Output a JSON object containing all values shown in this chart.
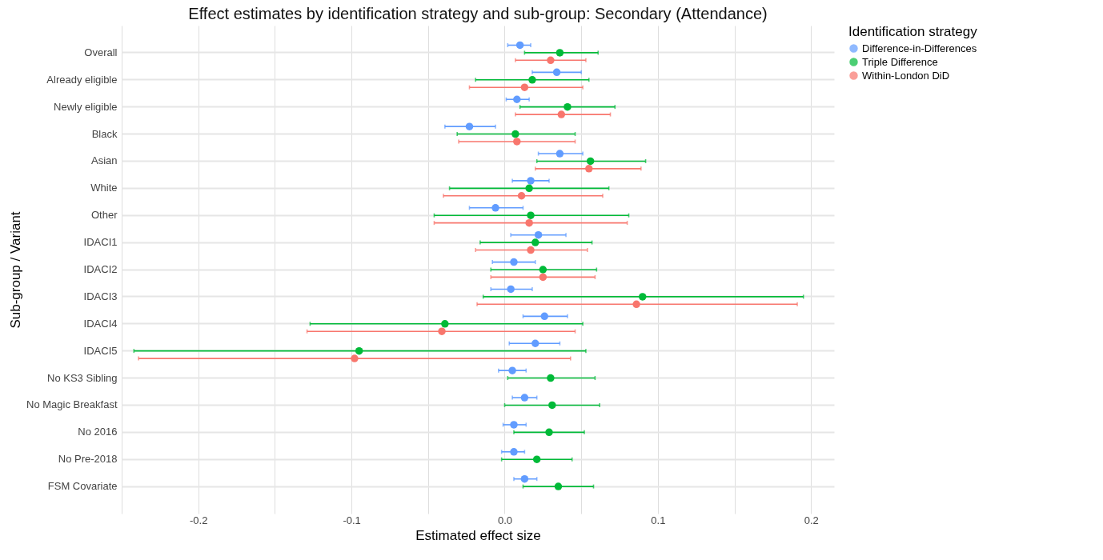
{
  "chart_data": {
    "type": "scatter",
    "orientation": "horizontal",
    "title": "Effect estimates by identification strategy and sub-group: Secondary (Attendance)",
    "xlabel": "Estimated effect size",
    "ylabel": "Sub-group / Variant",
    "legend_title": "Identification strategy",
    "legend": "right",
    "grid": true,
    "marker": "circle",
    "categories": [
      "Overall",
      "Already eligible",
      "Newly eligible",
      "Black",
      "Asian",
      "White",
      "Other",
      "IDACI1",
      "IDACI2",
      "IDACI3",
      "IDACI4",
      "IDACI5",
      "No KS3 Sibling",
      "No Magic Breakfast",
      "No 2016",
      "No Pre-2018",
      "FSM Covariate"
    ],
    "xlim": [
      -0.25,
      0.215
    ],
    "xticks": [
      {
        "value": -0.25,
        "label": null
      },
      {
        "value": -0.2,
        "label": "-0.2"
      },
      {
        "value": -0.15,
        "label": null
      },
      {
        "value": -0.1,
        "label": "-0.1"
      },
      {
        "value": -0.05,
        "label": null
      },
      {
        "value": 0,
        "label": "0.0"
      },
      {
        "value": 0.05,
        "label": null
      },
      {
        "value": 0.1,
        "label": "0.1"
      },
      {
        "value": 0.15,
        "label": null
      },
      {
        "value": 0.2,
        "label": "0.2"
      }
    ],
    "series": [
      {
        "name": "Difference-in-Differences",
        "color": "#619cff",
        "values": [
          0.01,
          0.034,
          0.008,
          -0.023,
          0.036,
          0.017,
          -0.006,
          0.022,
          0.006,
          0.004,
          0.026,
          0.02,
          0.005,
          0.013,
          0.006,
          0.006,
          0.013
        ],
        "errors": [
          [
            0.002,
            0.017
          ],
          [
            0.018,
            0.05
          ],
          [
            0.001,
            0.016
          ],
          [
            -0.039,
            -0.006
          ],
          [
            0.022,
            0.051
          ],
          [
            0.005,
            0.029
          ],
          [
            -0.023,
            0.012
          ],
          [
            0.004,
            0.04
          ],
          [
            -0.008,
            0.02
          ],
          [
            -0.009,
            0.018
          ],
          [
            0.012,
            0.041
          ],
          [
            0.003,
            0.036
          ],
          [
            -0.004,
            0.014
          ],
          [
            0.005,
            0.021
          ],
          [
            -0.001,
            0.014
          ],
          [
            -0.002,
            0.013
          ],
          [
            0.006,
            0.021
          ]
        ]
      },
      {
        "name": "Triple Difference",
        "color": "#00ba38",
        "values": [
          0.036,
          0.018,
          0.041,
          0.007,
          0.056,
          0.016,
          0.017,
          0.02,
          0.025,
          0.09,
          -0.039,
          -0.095,
          0.03,
          0.031,
          0.029,
          0.021,
          0.035
        ],
        "errors": [
          [
            0.013,
            0.061
          ],
          [
            -0.019,
            0.055
          ],
          [
            0.01,
            0.072
          ],
          [
            -0.031,
            0.046
          ],
          [
            0.021,
            0.092
          ],
          [
            -0.036,
            0.068
          ],
          [
            -0.046,
            0.081
          ],
          [
            -0.016,
            0.057
          ],
          [
            -0.009,
            0.06
          ],
          [
            -0.014,
            0.195
          ],
          [
            -0.127,
            0.051
          ],
          [
            -0.242,
            0.053
          ],
          [
            0.002,
            0.059
          ],
          [
            0.0,
            0.062
          ],
          [
            0.006,
            0.052
          ],
          [
            -0.002,
            0.044
          ],
          [
            0.012,
            0.058
          ]
        ]
      },
      {
        "name": "Within-London DiD",
        "color": "#f8766d",
        "values": [
          0.03,
          0.013,
          0.037,
          0.008,
          0.055,
          0.011,
          0.016,
          0.017,
          0.025,
          0.086,
          -0.041,
          -0.098,
          null,
          null,
          null,
          null,
          null
        ],
        "errors": [
          [
            0.007,
            0.053
          ],
          [
            -0.023,
            0.051
          ],
          [
            0.007,
            0.069
          ],
          [
            -0.03,
            0.046
          ],
          [
            0.02,
            0.089
          ],
          [
            -0.04,
            0.064
          ],
          [
            -0.046,
            0.08
          ],
          [
            -0.019,
            0.054
          ],
          [
            -0.009,
            0.059
          ],
          [
            -0.018,
            0.191
          ],
          [
            -0.129,
            0.046
          ],
          [
            -0.239,
            0.043
          ],
          null,
          null,
          null,
          null,
          null
        ]
      }
    ]
  }
}
